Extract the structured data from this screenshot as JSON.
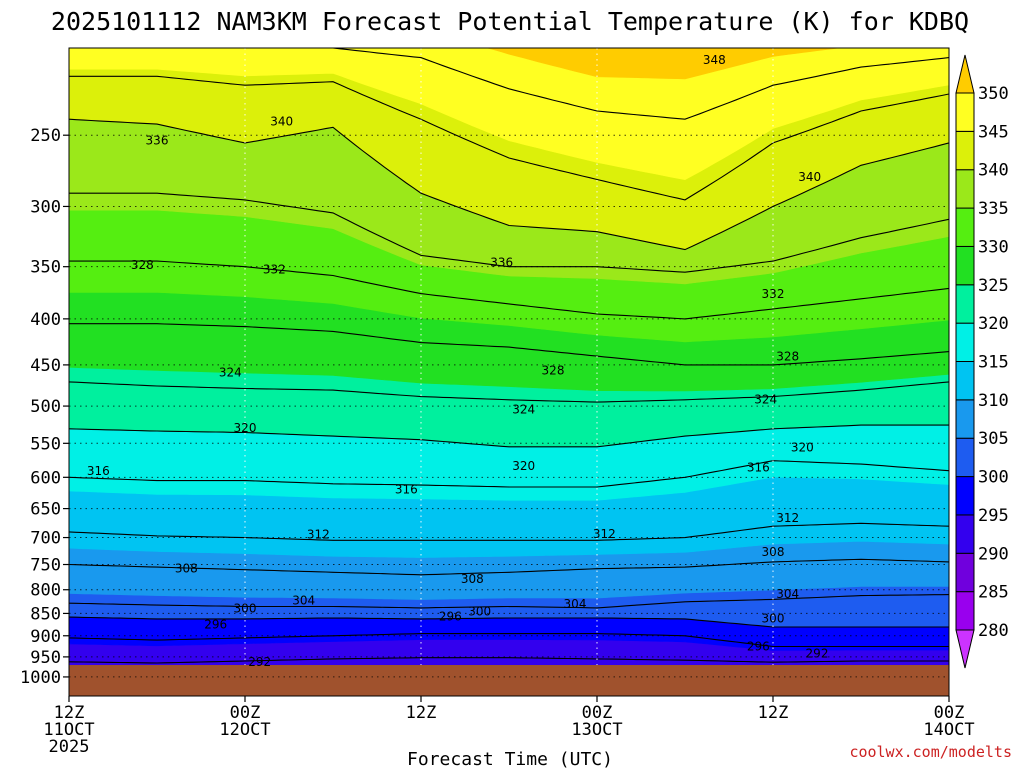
{
  "chart_data": {
    "type": "heatmap",
    "title": "2025101112 NAM3KM Forecast Potential Temperature (K) for KDBQ",
    "xlabel": "Forecast Time (UTC)",
    "ylabel": "",
    "source": "coolwx.com/modelts",
    "x_range_hours": [
      0,
      60
    ],
    "y_range_hpa": [
      200,
      1050
    ],
    "y_ticks": [
      250,
      300,
      350,
      400,
      450,
      500,
      550,
      600,
      650,
      700,
      750,
      800,
      850,
      900,
      950,
      1000
    ],
    "x_ticks": [
      {
        "hour": 0,
        "line1": "12Z",
        "line2": "11OCT",
        "line3": "2025"
      },
      {
        "hour": 12,
        "line1": "00Z",
        "line2": "12OCT",
        "line3": ""
      },
      {
        "hour": 24,
        "line1": "12Z",
        "line2": "",
        "line3": ""
      },
      {
        "hour": 36,
        "line1": "00Z",
        "line2": "13OCT",
        "line3": ""
      },
      {
        "hour": 48,
        "line1": "12Z",
        "line2": "",
        "line3": ""
      },
      {
        "hour": 60,
        "line1": "00Z",
        "line2": "14OCT",
        "line3": ""
      }
    ],
    "surface_pressure_hpa": 970,
    "colorbar": {
      "levels": [
        280,
        285,
        290,
        295,
        300,
        305,
        310,
        315,
        320,
        325,
        330,
        335,
        340,
        345,
        350
      ],
      "colors": [
        "#cc33ff",
        "#9900ee",
        "#7000dd",
        "#3300ee",
        "#0000ff",
        "#1e5cf0",
        "#1999ee",
        "#00c4f2",
        "#00f0e6",
        "#00f09e",
        "#22e022",
        "#55ee11",
        "#9be81a",
        "#dcf00a",
        "#ffff22",
        "#ffcc00"
      ],
      "tick_labels": [
        "280",
        "285",
        "290",
        "295",
        "300",
        "305",
        "310",
        "315",
        "320",
        "325",
        "330",
        "335",
        "340",
        "345",
        "350"
      ]
    },
    "contour_levels": [
      292,
      296,
      300,
      304,
      308,
      312,
      316,
      320,
      324,
      328,
      332,
      336,
      340,
      344,
      348
    ],
    "theta_profiles": [
      {
        "hour": 0,
        "isentropes_hpa": {
          "292": 962,
          "296": 905,
          "300": 858,
          "304": 828,
          "308": 750,
          "312": 690,
          "316": 600,
          "320": 530,
          "324": 470,
          "328": 405,
          "332": 345,
          "336": 290,
          "340": 240,
          "344": 215,
          "348": 200
        }
      },
      {
        "hour": 6,
        "isentropes_hpa": {
          "292": 965,
          "296": 910,
          "300": 862,
          "304": 832,
          "308": 755,
          "312": 697,
          "316": 605,
          "320": 533,
          "324": 475,
          "328": 405,
          "332": 345,
          "336": 290,
          "340": 243,
          "344": 215,
          "348": 200
        }
      },
      {
        "hour": 12,
        "isentropes_hpa": {
          "292": 960,
          "296": 905,
          "300": 862,
          "304": 835,
          "308": 760,
          "312": 700,
          "316": 605,
          "320": 535,
          "324": 478,
          "328": 408,
          "332": 350,
          "336": 295,
          "340": 255,
          "344": 220,
          "348": 200
        }
      },
      {
        "hour": 18,
        "isentropes_hpa": {
          "292": 955,
          "296": 900,
          "300": 860,
          "304": 835,
          "308": 765,
          "312": 705,
          "316": 610,
          "320": 540,
          "324": 480,
          "328": 413,
          "332": 358,
          "336": 305,
          "340": 245,
          "344": 218,
          "348": 200
        }
      },
      {
        "hour": 24,
        "isentropes_hpa": {
          "292": 952,
          "296": 895,
          "300": 862,
          "304": 838,
          "308": 770,
          "312": 705,
          "316": 612,
          "320": 545,
          "324": 488,
          "328": 425,
          "332": 375,
          "336": 340,
          "340": 290,
          "344": 240,
          "348": 205
        }
      },
      {
        "hour": 30,
        "isentropes_hpa": {
          "292": 952,
          "296": 895,
          "300": 860,
          "304": 835,
          "308": 765,
          "312": 705,
          "316": 615,
          "320": 555,
          "324": 492,
          "328": 430,
          "332": 385,
          "336": 350,
          "340": 315,
          "344": 265,
          "348": 222
        }
      },
      {
        "hour": 36,
        "isentropes_hpa": {
          "292": 955,
          "296": 895,
          "300": 860,
          "304": 838,
          "308": 758,
          "312": 705,
          "316": 615,
          "320": 555,
          "324": 495,
          "328": 440,
          "332": 395,
          "336": 350,
          "340": 320,
          "344": 280,
          "348": 235
        }
      },
      {
        "hour": 42,
        "isentropes_hpa": {
          "292": 958,
          "296": 900,
          "300": 862,
          "304": 825,
          "308": 755,
          "312": 700,
          "316": 600,
          "320": 540,
          "324": 492,
          "328": 450,
          "332": 400,
          "336": 355,
          "340": 335,
          "344": 295,
          "348": 240
        }
      },
      {
        "hour": 48,
        "isentropes_hpa": {
          "292": 963,
          "296": 925,
          "300": 880,
          "304": 820,
          "308": 745,
          "312": 680,
          "316": 575,
          "320": 530,
          "324": 488,
          "328": 450,
          "332": 390,
          "336": 345,
          "340": 300,
          "344": 255,
          "348": 220
        }
      },
      {
        "hour": 54,
        "isentropes_hpa": {
          "292": 960,
          "296": 925,
          "300": 880,
          "304": 812,
          "308": 740,
          "312": 675,
          "316": 580,
          "320": 525,
          "324": 480,
          "328": 443,
          "332": 380,
          "336": 325,
          "340": 270,
          "344": 235,
          "348": 210
        }
      },
      {
        "hour": 60,
        "isentropes_hpa": {
          "292": 960,
          "296": 925,
          "300": 880,
          "304": 810,
          "308": 745,
          "312": 680,
          "316": 590,
          "320": 525,
          "324": 470,
          "328": 435,
          "332": 370,
          "336": 310,
          "340": 255,
          "344": 225,
          "348": 205
        }
      }
    ],
    "contour_labels": [
      {
        "level": 348,
        "hour": 44,
        "pressure_hpa": 206
      },
      {
        "level": 340,
        "hour": 14.5,
        "pressure_hpa": 241
      },
      {
        "level": 340,
        "hour": 50.5,
        "pressure_hpa": 278
      },
      {
        "level": 336,
        "hour": 6,
        "pressure_hpa": 253
      },
      {
        "level": 336,
        "hour": 29.5,
        "pressure_hpa": 346
      },
      {
        "level": 332,
        "hour": 14,
        "pressure_hpa": 352
      },
      {
        "level": 332,
        "hour": 48,
        "pressure_hpa": 375
      },
      {
        "level": 328,
        "hour": 5,
        "pressure_hpa": 348
      },
      {
        "level": 328,
        "hour": 33,
        "pressure_hpa": 456
      },
      {
        "level": 328,
        "hour": 49,
        "pressure_hpa": 440
      },
      {
        "level": 324,
        "hour": 11,
        "pressure_hpa": 458
      },
      {
        "level": 324,
        "hour": 31,
        "pressure_hpa": 504
      },
      {
        "level": 324,
        "hour": 47.5,
        "pressure_hpa": 491
      },
      {
        "level": 320,
        "hour": 12,
        "pressure_hpa": 528
      },
      {
        "level": 320,
        "hour": 31,
        "pressure_hpa": 582
      },
      {
        "level": 320,
        "hour": 50,
        "pressure_hpa": 555
      },
      {
        "level": 316,
        "hour": 2,
        "pressure_hpa": 590
      },
      {
        "level": 316,
        "hour": 23,
        "pressure_hpa": 618
      },
      {
        "level": 316,
        "hour": 47,
        "pressure_hpa": 584
      },
      {
        "level": 312,
        "hour": 17,
        "pressure_hpa": 694
      },
      {
        "level": 312,
        "hour": 36.5,
        "pressure_hpa": 693
      },
      {
        "level": 312,
        "hour": 49,
        "pressure_hpa": 665
      },
      {
        "level": 308,
        "hour": 8,
        "pressure_hpa": 757
      },
      {
        "level": 308,
        "hour": 27.5,
        "pressure_hpa": 777
      },
      {
        "level": 308,
        "hour": 48,
        "pressure_hpa": 725
      },
      {
        "level": 304,
        "hour": 16,
        "pressure_hpa": 821
      },
      {
        "level": 304,
        "hour": 34.5,
        "pressure_hpa": 829
      },
      {
        "level": 304,
        "hour": 49,
        "pressure_hpa": 808
      },
      {
        "level": 300,
        "hour": 12,
        "pressure_hpa": 838
      },
      {
        "level": 300,
        "hour": 28,
        "pressure_hpa": 845
      },
      {
        "level": 300,
        "hour": 48,
        "pressure_hpa": 860
      },
      {
        "level": 296,
        "hour": 10,
        "pressure_hpa": 873
      },
      {
        "level": 296,
        "hour": 26,
        "pressure_hpa": 856
      },
      {
        "level": 296,
        "hour": 47,
        "pressure_hpa": 924
      },
      {
        "level": 292,
        "hour": 13,
        "pressure_hpa": 961
      },
      {
        "level": 292,
        "hour": 51,
        "pressure_hpa": 940
      }
    ]
  }
}
